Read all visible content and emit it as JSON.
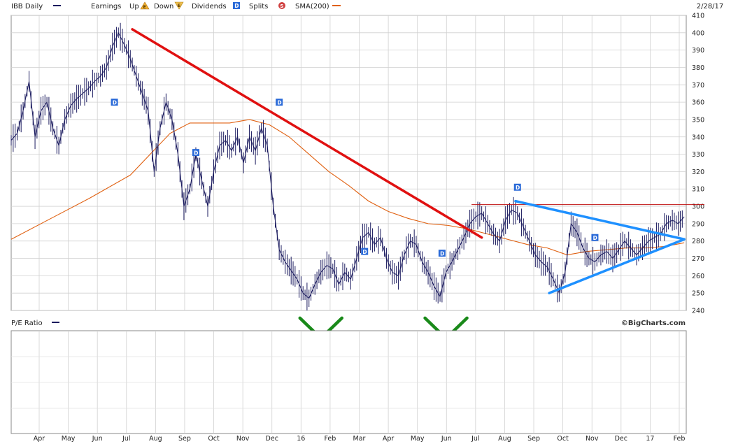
{
  "chart_data": [
    {
      "type": "line",
      "title": "",
      "ticker_label": "IBB Daily",
      "legend": {
        "earnings": "Earnings",
        "up": "Up",
        "down": "Down",
        "dividends": "Dividends",
        "splits": "Splits",
        "sma": "SMA(200)",
        "earnings_up_glyph": "E",
        "earnings_down_glyph": "E",
        "dividends_glyph": "D",
        "splits_glyph": "S"
      },
      "date_label": "2/28/17",
      "watermark": "©BigCharts.com",
      "xlabel": "",
      "ylabel": "",
      "ylim": [
        240,
        410
      ],
      "y_ticks": [
        240,
        250,
        260,
        270,
        280,
        290,
        300,
        310,
        320,
        330,
        340,
        350,
        360,
        370,
        380,
        390,
        400,
        410
      ],
      "x_ticks": [
        "Apr",
        "May",
        "Jun",
        "Jul",
        "Aug",
        "Sep",
        "Oct",
        "Nov",
        "Dec",
        "16",
        "Feb",
        "Mar",
        "Apr",
        "May",
        "Jun",
        "Jul",
        "Aug",
        "Sep",
        "Oct",
        "Nov",
        "Dec",
        "17",
        "Feb"
      ],
      "grid": true,
      "price_series": {
        "name": "IBB Daily",
        "color": "#1a1a5e",
        "points": [
          [
            0,
            338
          ],
          [
            3,
            342
          ],
          [
            6,
            355
          ],
          [
            9,
            372
          ],
          [
            12,
            340
          ],
          [
            15,
            355
          ],
          [
            18,
            360
          ],
          [
            21,
            345
          ],
          [
            24,
            335
          ],
          [
            27,
            350
          ],
          [
            30,
            358
          ],
          [
            33,
            362
          ],
          [
            36,
            365
          ],
          [
            39,
            368
          ],
          [
            42,
            372
          ],
          [
            45,
            375
          ],
          [
            48,
            380
          ],
          [
            51,
            392
          ],
          [
            54,
            400
          ],
          [
            57,
            393
          ],
          [
            60,
            385
          ],
          [
            63,
            375
          ],
          [
            66,
            365
          ],
          [
            69,
            355
          ],
          [
            72,
            320
          ],
          [
            75,
            345
          ],
          [
            78,
            360
          ],
          [
            81,
            350
          ],
          [
            84,
            330
          ],
          [
            87,
            300
          ],
          [
            90,
            310
          ],
          [
            93,
            330
          ],
          [
            96,
            315
          ],
          [
            99,
            300
          ],
          [
            102,
            320
          ],
          [
            105,
            335
          ],
          [
            108,
            338
          ],
          [
            111,
            332
          ],
          [
            114,
            340
          ],
          [
            117,
            325
          ],
          [
            120,
            340
          ],
          [
            123,
            332
          ],
          [
            126,
            345
          ],
          [
            129,
            335
          ],
          [
            132,
            300
          ],
          [
            135,
            275
          ],
          [
            138,
            268
          ],
          [
            141,
            263
          ],
          [
            144,
            258
          ],
          [
            147,
            250
          ],
          [
            150,
            247
          ],
          [
            153,
            255
          ],
          [
            156,
            262
          ],
          [
            159,
            266
          ],
          [
            162,
            264
          ],
          [
            165,
            255
          ],
          [
            168,
            262
          ],
          [
            171,
            258
          ],
          [
            174,
            270
          ],
          [
            177,
            282
          ],
          [
            180,
            285
          ],
          [
            183,
            278
          ],
          [
            186,
            282
          ],
          [
            189,
            270
          ],
          [
            192,
            262
          ],
          [
            195,
            260
          ],
          [
            198,
            272
          ],
          [
            201,
            280
          ],
          [
            204,
            278
          ],
          [
            207,
            268
          ],
          [
            210,
            262
          ],
          [
            213,
            254
          ],
          [
            216,
            248
          ],
          [
            219,
            262
          ],
          [
            222,
            268
          ],
          [
            225,
            275
          ],
          [
            228,
            282
          ],
          [
            231,
            290
          ],
          [
            234,
            294
          ],
          [
            237,
            296
          ],
          [
            240,
            290
          ],
          [
            243,
            284
          ],
          [
            246,
            280
          ],
          [
            249,
            292
          ],
          [
            252,
            298
          ],
          [
            255,
            296
          ],
          [
            258,
            288
          ],
          [
            261,
            280
          ],
          [
            264,
            272
          ],
          [
            267,
            268
          ],
          [
            270,
            265
          ],
          [
            273,
            258
          ],
          [
            276,
            250
          ],
          [
            279,
            262
          ],
          [
            282,
            290
          ],
          [
            285,
            285
          ],
          [
            288,
            276
          ],
          [
            291,
            270
          ],
          [
            294,
            268
          ],
          [
            297,
            272
          ],
          [
            300,
            274
          ],
          [
            303,
            270
          ],
          [
            306,
            275
          ],
          [
            309,
            280
          ],
          [
            312,
            276
          ],
          [
            315,
            272
          ],
          [
            318,
            276
          ],
          [
            321,
            280
          ],
          [
            324,
            282
          ],
          [
            327,
            284
          ],
          [
            330,
            290
          ],
          [
            333,
            292
          ],
          [
            336,
            290
          ],
          [
            339,
            294
          ]
        ]
      },
      "sma_series": {
        "name": "SMA(200)",
        "color": "#e06010",
        "points": [
          [
            0,
            281
          ],
          [
            20,
            293
          ],
          [
            40,
            305
          ],
          [
            60,
            318
          ],
          [
            70,
            330
          ],
          [
            80,
            342
          ],
          [
            90,
            348
          ],
          [
            100,
            348
          ],
          [
            110,
            348
          ],
          [
            120,
            350
          ],
          [
            130,
            347
          ],
          [
            140,
            340
          ],
          [
            150,
            330
          ],
          [
            160,
            320
          ],
          [
            170,
            312
          ],
          [
            180,
            303
          ],
          [
            190,
            297
          ],
          [
            200,
            293
          ],
          [
            210,
            290
          ],
          [
            220,
            289
          ],
          [
            230,
            287
          ],
          [
            240,
            284
          ],
          [
            250,
            281
          ],
          [
            260,
            278
          ],
          [
            270,
            276
          ],
          [
            280,
            272
          ],
          [
            290,
            274
          ],
          [
            300,
            275
          ],
          [
            310,
            276
          ],
          [
            320,
            276
          ],
          [
            330,
            277
          ],
          [
            339,
            279
          ]
        ]
      },
      "dividend_markers": [
        [
          52,
          360
        ],
        [
          135,
          360
        ],
        [
          93,
          331
        ],
        [
          178,
          274
        ],
        [
          217,
          273
        ],
        [
          255,
          311
        ],
        [
          294,
          282
        ]
      ],
      "annotations": {
        "trendline_red": {
          "color": "#e01010",
          "from": [
            61,
            402
          ],
          "to": [
            237,
            282
          ]
        },
        "resistance_line": {
          "color": "#c01010",
          "from": [
            232,
            301
          ],
          "to": [
            349,
            301
          ]
        },
        "triangle_upper": {
          "color": "#1e90ff",
          "from": [
            254,
            303
          ],
          "to": [
            339,
            281
          ]
        },
        "triangle_lower": {
          "color": "#1e90ff",
          "from": [
            271,
            250
          ],
          "to": [
            339,
            281
          ]
        },
        "check_marks": [
          {
            "color": "#1a8a1a",
            "at": [
              156,
              232
            ]
          },
          {
            "color": "#1a8a1a",
            "at": [
              219,
              232
            ]
          }
        ]
      }
    },
    {
      "type": "line",
      "title": "",
      "panel_label": "P/E Ratio",
      "xlabel": "",
      "ylabel": "",
      "grid": true,
      "series": []
    }
  ]
}
